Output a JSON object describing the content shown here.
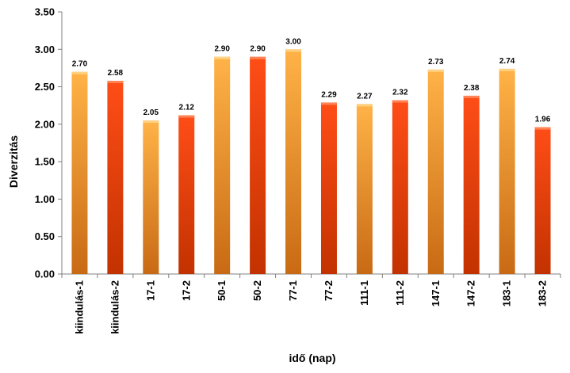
{
  "chart_data": {
    "type": "bar",
    "xlabel": "idő (nap)",
    "ylabel": "Diverzitás",
    "ylim": [
      0,
      3.5
    ],
    "y_ticks": [
      "0.00",
      "0.50",
      "1.00",
      "1.50",
      "2.00",
      "2.50",
      "3.00",
      "3.50"
    ],
    "grid": false,
    "legend": "none",
    "categories": [
      "kiindulás-1",
      "kiindulás-2",
      "17-1",
      "17-2",
      "50-1",
      "50-2",
      "77-1",
      "77-2",
      "111-1",
      "111-2",
      "147-1",
      "147-2",
      "183-1",
      "183-2"
    ],
    "values": [
      2.7,
      2.58,
      2.05,
      2.12,
      2.9,
      2.9,
      3.0,
      2.29,
      2.27,
      2.32,
      2.73,
      2.38,
      2.74,
      1.96
    ],
    "value_labels": [
      "2.70",
      "2.58",
      "2.05",
      "2.12",
      "2.90",
      "2.90",
      "3.00",
      "2.29",
      "2.27",
      "2.32",
      "2.73",
      "2.38",
      "2.74",
      "1.96"
    ],
    "colors": {
      "replicate_1_top": "#ffb347",
      "replicate_1_bottom": "#c86a14",
      "replicate_2_top": "#ff4d17",
      "replicate_2_bottom": "#c23200"
    }
  }
}
